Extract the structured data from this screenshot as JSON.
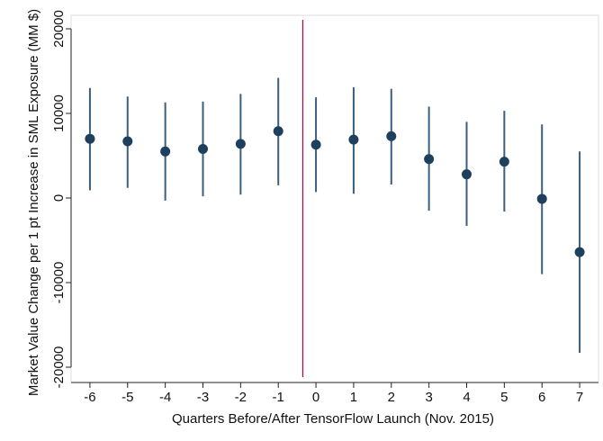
{
  "chart_data": {
    "type": "scatter",
    "xlabel": "Quarters Before/After TensorFlow Launch (Nov. 2015)",
    "ylabel": "Market Value Change per 1 pt Increase in SML Exposure (MM $)",
    "x": [
      -6,
      -5,
      -4,
      -3,
      -2,
      -1,
      0,
      1,
      2,
      3,
      4,
      5,
      6,
      7
    ],
    "y": [
      7000,
      6700,
      5500,
      5800,
      6400,
      7900,
      6300,
      6900,
      7300,
      4600,
      2800,
      4300,
      -100,
      -6400
    ],
    "ci_lower": [
      900,
      1200,
      -300,
      200,
      400,
      1500,
      700,
      500,
      1600,
      -1500,
      -3300,
      -1600,
      -9000,
      -18300
    ],
    "ci_upper": [
      13000,
      12000,
      11300,
      11400,
      12300,
      14200,
      11900,
      13100,
      12900,
      10800,
      9000,
      10300,
      8700,
      5500
    ],
    "xlim": [
      -6.5,
      7.5
    ],
    "ylim": [
      -20000,
      20000
    ],
    "xticks": [
      -6,
      -5,
      -4,
      -3,
      -2,
      -1,
      0,
      1,
      2,
      3,
      4,
      5,
      6,
      7
    ],
    "yticks": [
      -20000,
      -10000,
      0,
      10000,
      20000
    ],
    "reference_line_x": -0.35,
    "grid": false,
    "colors": {
      "marker": "#1f3f5f",
      "errorbar": "#3a5f7f",
      "reference_line": "#c0003c",
      "axis": "#222222"
    }
  }
}
